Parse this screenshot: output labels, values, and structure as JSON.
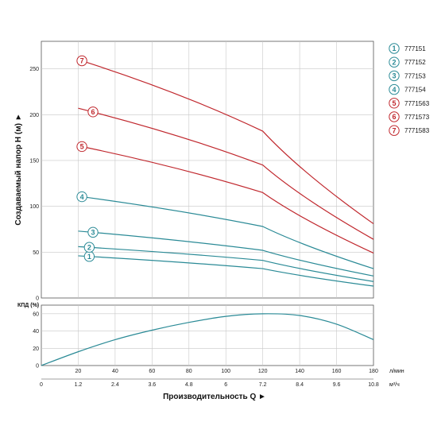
{
  "chart_data": [
    {
      "type": "line",
      "ylabel": "Создаваемый напор H (м) ►",
      "ylim": [
        0,
        280
      ],
      "yticks": [
        0,
        50,
        100,
        150,
        200,
        250
      ],
      "xlim": [
        0,
        180
      ],
      "grid": true,
      "legend_position": "right",
      "series": [
        {
          "name": "777151",
          "marker": "1",
          "color": "#2a8a96",
          "x": [
            20,
            120,
            180
          ],
          "y": [
            46,
            32,
            13
          ]
        },
        {
          "name": "777152",
          "marker": "2",
          "color": "#2a8a96",
          "x": [
            20,
            120,
            180
          ],
          "y": [
            56,
            41,
            18
          ]
        },
        {
          "name": "777153",
          "marker": "3",
          "color": "#2a8a96",
          "x": [
            20,
            120,
            180
          ],
          "y": [
            73,
            52,
            24
          ]
        },
        {
          "name": "777154",
          "marker": "4",
          "color": "#2a8a96",
          "x": [
            20,
            120,
            180
          ],
          "y": [
            111,
            78,
            32
          ]
        },
        {
          "name": "7771563",
          "marker": "5",
          "color": "#c0272d",
          "x": [
            20,
            120,
            180
          ],
          "y": [
            166,
            115,
            49
          ]
        },
        {
          "name": "7771573",
          "marker": "6",
          "color": "#c0272d",
          "x": [
            20,
            120,
            180
          ],
          "y": [
            207,
            145,
            64
          ]
        },
        {
          "name": "7771583",
          "marker": "7",
          "color": "#c0272d",
          "x": [
            20,
            120,
            180
          ],
          "y": [
            260,
            182,
            81
          ]
        }
      ]
    },
    {
      "type": "line",
      "ylabel": "КПД (%)",
      "ylim": [
        0,
        70
      ],
      "yticks": [
        0,
        20,
        40,
        60
      ],
      "xlim": [
        0,
        180
      ],
      "grid": true,
      "series": [
        {
          "color": "#2a8a96",
          "x": [
            0,
            20,
            40,
            60,
            80,
            100,
            120,
            140,
            160,
            180
          ],
          "y": [
            0,
            16,
            30,
            41,
            50,
            57,
            60,
            58,
            48,
            30
          ]
        }
      ]
    }
  ],
  "x_axis": {
    "flow_lpm_ticks": [
      "0",
      "20",
      "40",
      "60",
      "80",
      "100",
      "120",
      "140",
      "160",
      "180"
    ],
    "flow_m3h_ticks": [
      "0",
      "1.2",
      "2.4",
      "3.6",
      "4.8",
      "6",
      "7.2",
      "8.4",
      "9.6",
      "10.8"
    ],
    "unit_lpm": "л/мин",
    "unit_m3h": "м³/ч",
    "label": "Производительность Q ►"
  }
}
